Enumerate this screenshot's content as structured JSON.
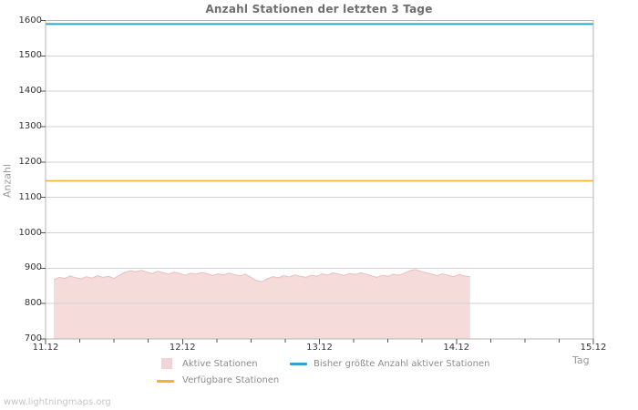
{
  "title": "Anzahl Stationen der letzten 3 Tage",
  "watermark": "www.lightningmaps.org",
  "chart_data": {
    "type": "area",
    "title": "Anzahl Stationen der letzten 3 Tage",
    "xlabel": "Tag",
    "ylabel": "Anzahl",
    "ylim": [
      700,
      1600
    ],
    "y_tick_step": 100,
    "y_ticks": [
      700,
      800,
      900,
      1000,
      1100,
      1200,
      1300,
      1400,
      1500,
      1600
    ],
    "x_ticks": [
      "11.12",
      "12.12",
      "13.12",
      "14.12",
      "15.12"
    ],
    "x_minor_divisions_per_day": 4,
    "grid": true,
    "legend_position": "bottom",
    "colors": {
      "active_fill": "#f6dbdb",
      "active_stroke": "#e9c0c0",
      "active_legend_swatch": "#f2d4d4",
      "max_line": "#2ba6c9",
      "available_line": "#fbb034",
      "grid": "#d2d2d2",
      "border": "#b5b5b5"
    },
    "series": [
      {
        "name": "Aktive Stationen",
        "type": "area",
        "points": [
          [
            0.06,
            868
          ],
          [
            0.1,
            874
          ],
          [
            0.14,
            871
          ],
          [
            0.18,
            878
          ],
          [
            0.22,
            873
          ],
          [
            0.26,
            870
          ],
          [
            0.3,
            876
          ],
          [
            0.34,
            872
          ],
          [
            0.38,
            879
          ],
          [
            0.42,
            874
          ],
          [
            0.46,
            877
          ],
          [
            0.5,
            871
          ],
          [
            0.54,
            880
          ],
          [
            0.58,
            888
          ],
          [
            0.62,
            893
          ],
          [
            0.66,
            890
          ],
          [
            0.7,
            894
          ],
          [
            0.74,
            889
          ],
          [
            0.78,
            885
          ],
          [
            0.82,
            891
          ],
          [
            0.86,
            887
          ],
          [
            0.9,
            883
          ],
          [
            0.94,
            889
          ],
          [
            0.98,
            885
          ],
          [
            1.02,
            880
          ],
          [
            1.06,
            886
          ],
          [
            1.1,
            883
          ],
          [
            1.14,
            888
          ],
          [
            1.18,
            884
          ],
          [
            1.22,
            879
          ],
          [
            1.26,
            884
          ],
          [
            1.3,
            881
          ],
          [
            1.34,
            886
          ],
          [
            1.38,
            882
          ],
          [
            1.42,
            878
          ],
          [
            1.46,
            883
          ],
          [
            1.5,
            874
          ],
          [
            1.54,
            865
          ],
          [
            1.58,
            862
          ],
          [
            1.62,
            870
          ],
          [
            1.66,
            876
          ],
          [
            1.7,
            873
          ],
          [
            1.74,
            879
          ],
          [
            1.78,
            875
          ],
          [
            1.82,
            881
          ],
          [
            1.86,
            877
          ],
          [
            1.9,
            874
          ],
          [
            1.94,
            880
          ],
          [
            1.98,
            877
          ],
          [
            2.02,
            884
          ],
          [
            2.06,
            880
          ],
          [
            2.1,
            887
          ],
          [
            2.14,
            883
          ],
          [
            2.18,
            879
          ],
          [
            2.22,
            885
          ],
          [
            2.26,
            882
          ],
          [
            2.3,
            887
          ],
          [
            2.34,
            883
          ],
          [
            2.38,
            878
          ],
          [
            2.42,
            874
          ],
          [
            2.46,
            880
          ],
          [
            2.5,
            877
          ],
          [
            2.54,
            883
          ],
          [
            2.58,
            880
          ],
          [
            2.62,
            886
          ],
          [
            2.66,
            893
          ],
          [
            2.7,
            896
          ],
          [
            2.74,
            891
          ],
          [
            2.78,
            887
          ],
          [
            2.82,
            883
          ],
          [
            2.86,
            879
          ],
          [
            2.9,
            884
          ],
          [
            2.94,
            880
          ],
          [
            2.98,
            876
          ],
          [
            3.02,
            882
          ],
          [
            3.06,
            878
          ],
          [
            3.1,
            876
          ]
        ]
      },
      {
        "name": "Bisher größte Anzahl aktiver Stationen",
        "type": "hline",
        "value": 1590
      },
      {
        "name": "Verfügbare Stationen",
        "type": "hline",
        "value": 1147
      }
    ]
  }
}
